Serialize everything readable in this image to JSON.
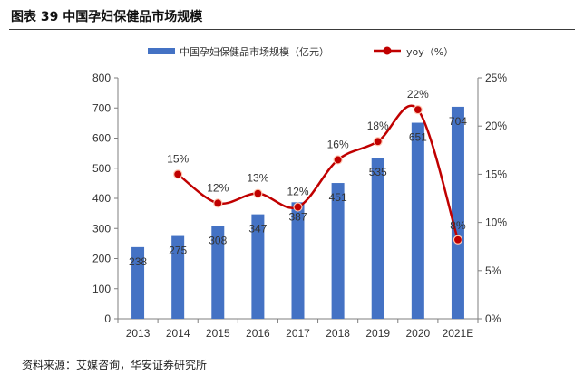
{
  "figure": {
    "title": "图表 39 中国孕妇保健品市场规模",
    "source": "资料来源：艾媒咨询，华安证券研究所"
  },
  "chart_data": {
    "type": "bar",
    "categories": [
      "2013",
      "2014",
      "2015",
      "2016",
      "2017",
      "2018",
      "2019",
      "2020",
      "2021E"
    ],
    "series": [
      {
        "name": "中国孕妇保健品市场规模（亿元）",
        "type": "bar",
        "axis": "left",
        "color": "#4472C4",
        "values": [
          238,
          275,
          308,
          347,
          387,
          451,
          535,
          651,
          704
        ],
        "labels": [
          "238",
          "275",
          "308",
          "347",
          "387",
          "451",
          "535",
          "651",
          "704"
        ]
      },
      {
        "name": "yoy（%）",
        "type": "line",
        "axis": "right",
        "color": "#C00000",
        "values": [
          null,
          15,
          12,
          13,
          11.6,
          16.5,
          18.4,
          21.7,
          8.2
        ],
        "labels": [
          "",
          "15%",
          "12%",
          "13%",
          "12%",
          "16%",
          "18%",
          "22%",
          "8%"
        ]
      }
    ],
    "y_left": {
      "min": 0,
      "max": 800,
      "ticks": [
        "0",
        "100",
        "200",
        "300",
        "400",
        "500",
        "600",
        "700",
        "800"
      ]
    },
    "y_right": {
      "min": 0,
      "max": 25,
      "ticks": [
        "0%",
        "5%",
        "10%",
        "15%",
        "20%",
        "25%"
      ]
    },
    "grid": false,
    "legend_position": "top"
  }
}
